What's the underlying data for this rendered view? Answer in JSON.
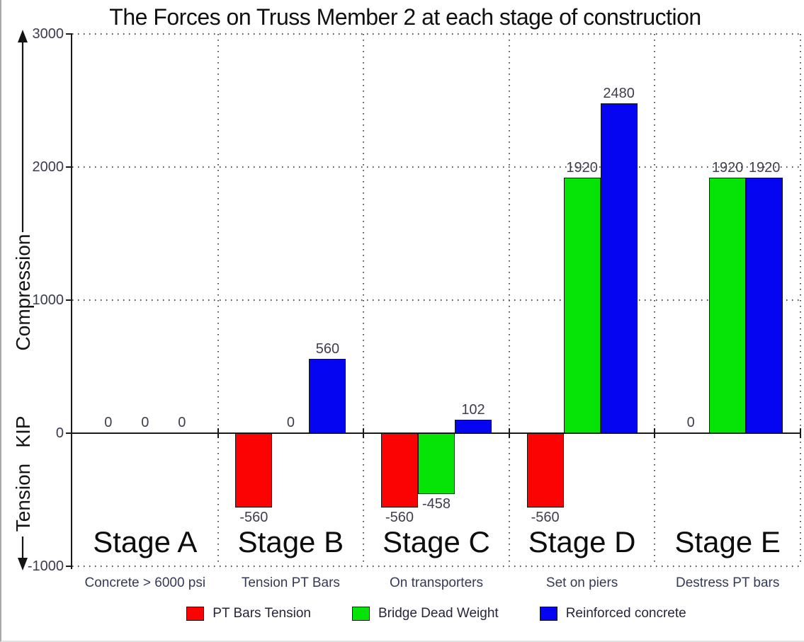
{
  "title": "The Forces on Truss Member 2 at each stage of construction",
  "chart_data": {
    "type": "bar",
    "title": "The Forces on Truss Member 2 at each stage of construction",
    "unit": "KIP",
    "y_axis_labels": {
      "top": "Compression",
      "unit": "KIP",
      "bottom": "Tension"
    },
    "yticks": [
      "3000",
      "2000",
      "1000",
      "0",
      "-1000"
    ],
    "ylim": [
      -1000,
      3000
    ],
    "grid": "dotted",
    "legend_position": "bottom",
    "categories": [
      "Stage A",
      "Stage B",
      "Stage C",
      "Stage D",
      "Stage E"
    ],
    "category_sublabels": [
      "Concrete > 6000 psi",
      "Tension PT Bars",
      "On transporters",
      "Set on piers",
      "Destress PT bars"
    ],
    "series": [
      {
        "name": "PT Bars Tension",
        "color": "#fb0303",
        "values": [
          0,
          -560,
          -560,
          -560,
          0
        ]
      },
      {
        "name": "Bridge Dead Weight",
        "color": "#06e306",
        "values": [
          0,
          0,
          -458,
          1920,
          1920
        ]
      },
      {
        "name": "Reinforced concrete",
        "color": "#0505f2",
        "values": [
          0,
          560,
          102,
          2480,
          1920
        ]
      }
    ]
  }
}
